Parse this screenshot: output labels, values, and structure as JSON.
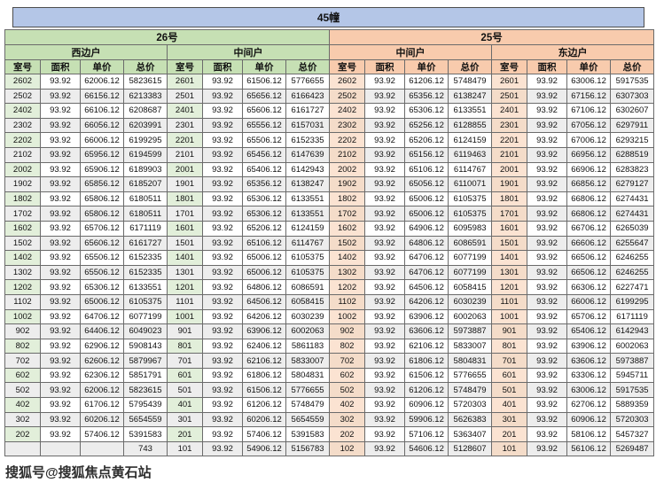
{
  "title": "45幢",
  "watermark": "搜狐号@搜狐焦点黄石站",
  "columns": [
    "室号",
    "面积",
    "单价",
    "总价"
  ],
  "sections": [
    {
      "label": "26号",
      "color": "#c6e0b4"
    },
    {
      "label": "25号",
      "color": "#f8cbad"
    }
  ],
  "colors": {
    "title_bg": "#b4c6e7",
    "green_header": "#c6e0b4",
    "peach_header": "#f8cbad",
    "green_room_cell": "#e2efda",
    "peach_room_cell": "#fbe3d2",
    "stripe": "#ededed",
    "border": "#6b6b6b"
  },
  "groups": [
    {
      "section": "26号",
      "unit_type": "西边户",
      "theme": "green",
      "rows": [
        [
          "2602",
          "93.92",
          "62006.12",
          "5823615"
        ],
        [
          "2502",
          "93.92",
          "66156.12",
          "6213383"
        ],
        [
          "2402",
          "93.92",
          "66106.12",
          "6208687"
        ],
        [
          "2302",
          "93.92",
          "66056.12",
          "6203991"
        ],
        [
          "2202",
          "93.92",
          "66006.12",
          "6199295"
        ],
        [
          "2102",
          "93.92",
          "65956.12",
          "6194599"
        ],
        [
          "2002",
          "93.92",
          "65906.12",
          "6189903"
        ],
        [
          "1902",
          "93.92",
          "65856.12",
          "6185207"
        ],
        [
          "1802",
          "93.92",
          "65806.12",
          "6180511"
        ],
        [
          "1702",
          "93.92",
          "65806.12",
          "6180511"
        ],
        [
          "1602",
          "93.92",
          "65706.12",
          "6171119"
        ],
        [
          "1502",
          "93.92",
          "65606.12",
          "6161727"
        ],
        [
          "1402",
          "93.92",
          "65506.12",
          "6152335"
        ],
        [
          "1302",
          "93.92",
          "65506.12",
          "6152335"
        ],
        [
          "1202",
          "93.92",
          "65306.12",
          "6133551"
        ],
        [
          "1102",
          "93.92",
          "65006.12",
          "6105375"
        ],
        [
          "1002",
          "93.92",
          "64706.12",
          "6077199"
        ],
        [
          "902",
          "93.92",
          "64406.12",
          "6049023"
        ],
        [
          "802",
          "93.92",
          "62906.12",
          "5908143"
        ],
        [
          "702",
          "93.92",
          "62606.12",
          "5879967"
        ],
        [
          "602",
          "93.92",
          "62306.12",
          "5851791"
        ],
        [
          "502",
          "93.92",
          "62006.12",
          "5823615"
        ],
        [
          "402",
          "93.92",
          "61706.12",
          "5795439"
        ],
        [
          "302",
          "93.92",
          "60206.12",
          "5654559"
        ],
        [
          "202",
          "93.92",
          "57406.12",
          "5391583"
        ],
        [
          "",
          "",
          "",
          "743"
        ]
      ]
    },
    {
      "section": "26号",
      "unit_type": "中间户",
      "theme": "green",
      "rows": [
        [
          "2601",
          "93.92",
          "61506.12",
          "5776655"
        ],
        [
          "2501",
          "93.92",
          "65656.12",
          "6166423"
        ],
        [
          "2401",
          "93.92",
          "65606.12",
          "6161727"
        ],
        [
          "2301",
          "93.92",
          "65556.12",
          "6157031"
        ],
        [
          "2201",
          "93.92",
          "65506.12",
          "6152335"
        ],
        [
          "2101",
          "93.92",
          "65456.12",
          "6147639"
        ],
        [
          "2001",
          "93.92",
          "65406.12",
          "6142943"
        ],
        [
          "1901",
          "93.92",
          "65356.12",
          "6138247"
        ],
        [
          "1801",
          "93.92",
          "65306.12",
          "6133551"
        ],
        [
          "1701",
          "93.92",
          "65306.12",
          "6133551"
        ],
        [
          "1601",
          "93.92",
          "65206.12",
          "6124159"
        ],
        [
          "1501",
          "93.92",
          "65106.12",
          "6114767"
        ],
        [
          "1401",
          "93.92",
          "65006.12",
          "6105375"
        ],
        [
          "1301",
          "93.92",
          "65006.12",
          "6105375"
        ],
        [
          "1201",
          "93.92",
          "64806.12",
          "6086591"
        ],
        [
          "1101",
          "93.92",
          "64506.12",
          "6058415"
        ],
        [
          "1001",
          "93.92",
          "64206.12",
          "6030239"
        ],
        [
          "901",
          "93.92",
          "63906.12",
          "6002063"
        ],
        [
          "801",
          "93.92",
          "62406.12",
          "5861183"
        ],
        [
          "701",
          "93.92",
          "62106.12",
          "5833007"
        ],
        [
          "601",
          "93.92",
          "61806.12",
          "5804831"
        ],
        [
          "501",
          "93.92",
          "61506.12",
          "5776655"
        ],
        [
          "401",
          "93.92",
          "61206.12",
          "5748479"
        ],
        [
          "301",
          "93.92",
          "60206.12",
          "5654559"
        ],
        [
          "201",
          "93.92",
          "57406.12",
          "5391583"
        ],
        [
          "101",
          "93.92",
          "54906.12",
          "5156783"
        ]
      ]
    },
    {
      "section": "25号",
      "unit_type": "中间户",
      "theme": "peach",
      "rows": [
        [
          "2602",
          "93.92",
          "61206.12",
          "5748479"
        ],
        [
          "2502",
          "93.92",
          "65356.12",
          "6138247"
        ],
        [
          "2402",
          "93.92",
          "65306.12",
          "6133551"
        ],
        [
          "2302",
          "93.92",
          "65256.12",
          "6128855"
        ],
        [
          "2202",
          "93.92",
          "65206.12",
          "6124159"
        ],
        [
          "2102",
          "93.92",
          "65156.12",
          "6119463"
        ],
        [
          "2002",
          "93.92",
          "65106.12",
          "6114767"
        ],
        [
          "1902",
          "93.92",
          "65056.12",
          "6110071"
        ],
        [
          "1802",
          "93.92",
          "65006.12",
          "6105375"
        ],
        [
          "1702",
          "93.92",
          "65006.12",
          "6105375"
        ],
        [
          "1602",
          "93.92",
          "64906.12",
          "6095983"
        ],
        [
          "1502",
          "93.92",
          "64806.12",
          "6086591"
        ],
        [
          "1402",
          "93.92",
          "64706.12",
          "6077199"
        ],
        [
          "1302",
          "93.92",
          "64706.12",
          "6077199"
        ],
        [
          "1202",
          "93.92",
          "64506.12",
          "6058415"
        ],
        [
          "1102",
          "93.92",
          "64206.12",
          "6030239"
        ],
        [
          "1002",
          "93.92",
          "63906.12",
          "6002063"
        ],
        [
          "902",
          "93.92",
          "63606.12",
          "5973887"
        ],
        [
          "802",
          "93.92",
          "62106.12",
          "5833007"
        ],
        [
          "702",
          "93.92",
          "61806.12",
          "5804831"
        ],
        [
          "602",
          "93.92",
          "61506.12",
          "5776655"
        ],
        [
          "502",
          "93.92",
          "61206.12",
          "5748479"
        ],
        [
          "402",
          "93.92",
          "60906.12",
          "5720303"
        ],
        [
          "302",
          "93.92",
          "59906.12",
          "5626383"
        ],
        [
          "202",
          "93.92",
          "57106.12",
          "5363407"
        ],
        [
          "102",
          "93.92",
          "54606.12",
          "5128607"
        ]
      ]
    },
    {
      "section": "25号",
      "unit_type": "东边户",
      "theme": "peach",
      "rows": [
        [
          "2601",
          "93.92",
          "63006.12",
          "5917535"
        ],
        [
          "2501",
          "93.92",
          "67156.12",
          "6307303"
        ],
        [
          "2401",
          "93.92",
          "67106.12",
          "6302607"
        ],
        [
          "2301",
          "93.92",
          "67056.12",
          "6297911"
        ],
        [
          "2201",
          "93.92",
          "67006.12",
          "6293215"
        ],
        [
          "2101",
          "93.92",
          "66956.12",
          "6288519"
        ],
        [
          "2001",
          "93.92",
          "66906.12",
          "6283823"
        ],
        [
          "1901",
          "93.92",
          "66856.12",
          "6279127"
        ],
        [
          "1801",
          "93.92",
          "66806.12",
          "6274431"
        ],
        [
          "1701",
          "93.92",
          "66806.12",
          "6274431"
        ],
        [
          "1601",
          "93.92",
          "66706.12",
          "6265039"
        ],
        [
          "1501",
          "93.92",
          "66606.12",
          "6255647"
        ],
        [
          "1401",
          "93.92",
          "66506.12",
          "6246255"
        ],
        [
          "1301",
          "93.92",
          "66506.12",
          "6246255"
        ],
        [
          "1201",
          "93.92",
          "66306.12",
          "6227471"
        ],
        [
          "1101",
          "93.92",
          "66006.12",
          "6199295"
        ],
        [
          "1001",
          "93.92",
          "65706.12",
          "6171119"
        ],
        [
          "901",
          "93.92",
          "65406.12",
          "6142943"
        ],
        [
          "801",
          "93.92",
          "63906.12",
          "6002063"
        ],
        [
          "701",
          "93.92",
          "63606.12",
          "5973887"
        ],
        [
          "601",
          "93.92",
          "63306.12",
          "5945711"
        ],
        [
          "501",
          "93.92",
          "63006.12",
          "5917535"
        ],
        [
          "401",
          "93.92",
          "62706.12",
          "5889359"
        ],
        [
          "301",
          "93.92",
          "60906.12",
          "5720303"
        ],
        [
          "201",
          "93.92",
          "58106.12",
          "5457327"
        ],
        [
          "101",
          "93.92",
          "56106.12",
          "5269487"
        ]
      ]
    }
  ]
}
